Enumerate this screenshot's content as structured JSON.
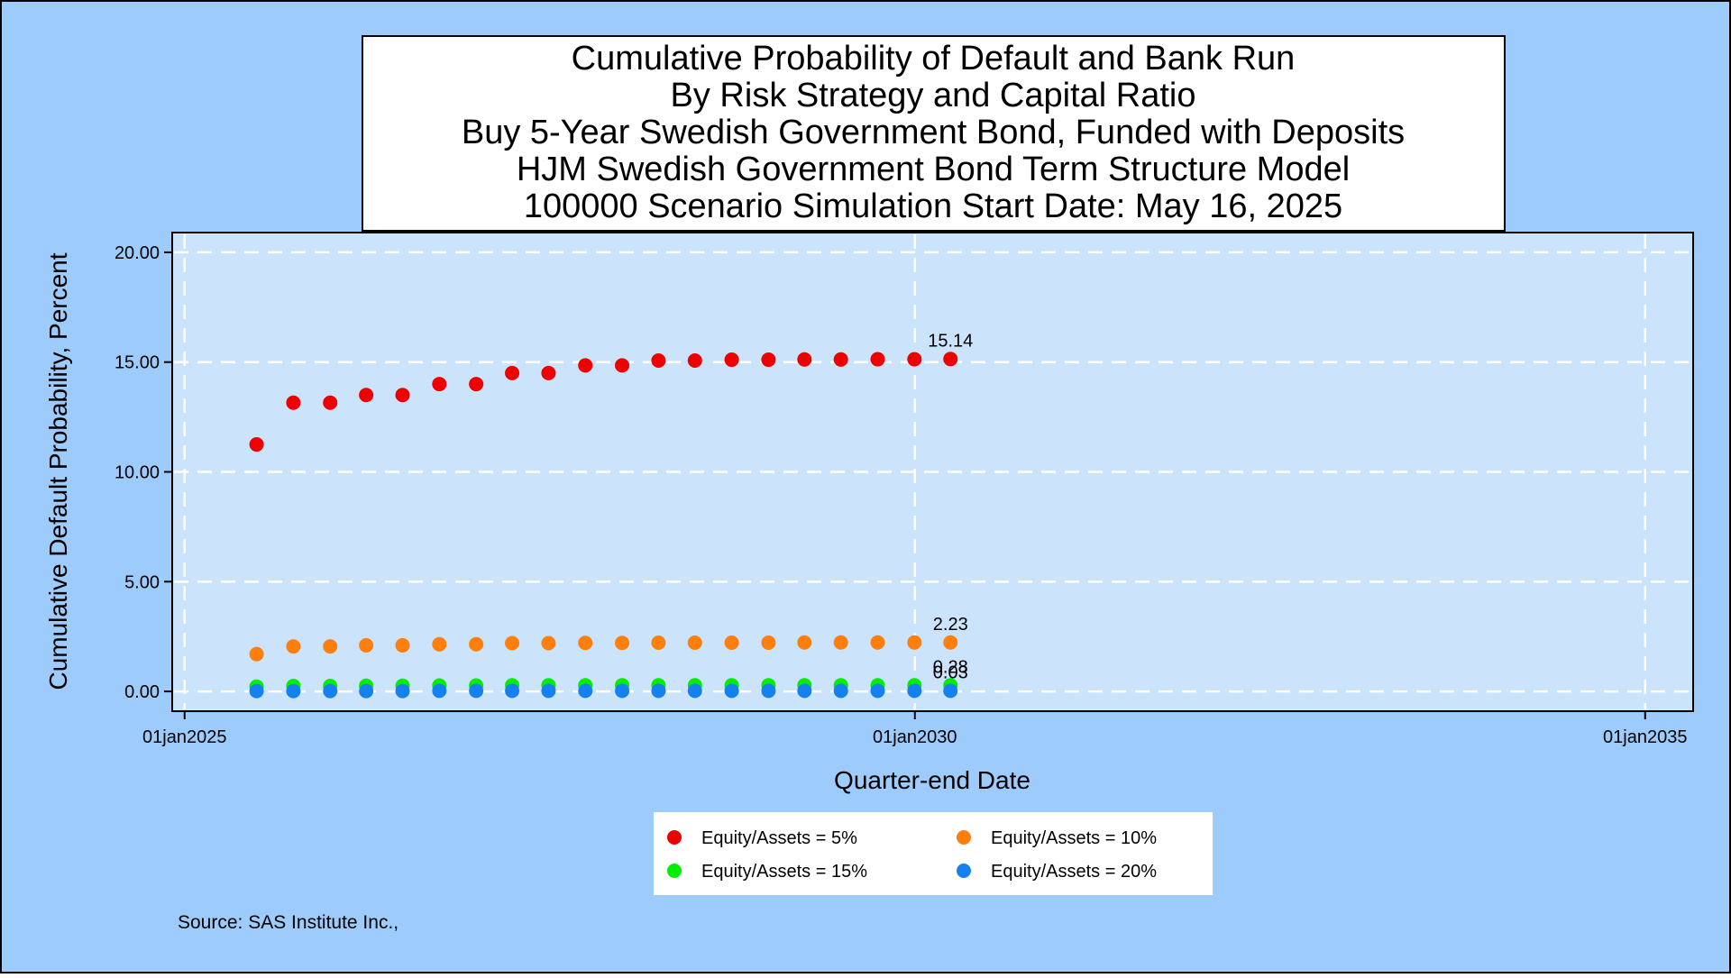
{
  "chart_data": {
    "type": "scatter",
    "title_lines": [
      "Cumulative Probability of Default and Bank Run",
      "By Risk Strategy and Capital Ratio",
      "Buy 5-Year Swedish Government Bond, Funded with Deposits",
      "HJM Swedish Government Bond Term Structure Model",
      "100000 Scenario Simulation Start Date: May 16, 2025"
    ],
    "xlabel": "Quarter-end Date",
    "ylabel": "Cumulative Default Probability, Percent",
    "x_ticks": [
      "01jan2025",
      "01jan2030",
      "01jan2035"
    ],
    "y_ticks": [
      "0.00",
      "5.00",
      "10.00",
      "15.00",
      "20.00"
    ],
    "xlim": [
      "2024-12-01",
      "2035-05-01"
    ],
    "ylim": [
      -0.9,
      20.9
    ],
    "grid": true,
    "legend_position": "bottom",
    "x": [
      "2025-06-30",
      "2025-09-30",
      "2025-12-31",
      "2026-03-31",
      "2026-06-30",
      "2026-09-30",
      "2026-12-31",
      "2027-03-31",
      "2027-06-30",
      "2027-09-30",
      "2027-12-31",
      "2028-03-31",
      "2028-06-30",
      "2028-09-30",
      "2028-12-31",
      "2029-03-31",
      "2029-06-30",
      "2029-09-30",
      "2029-12-31",
      "2030-03-31"
    ],
    "series": [
      {
        "name": "Equity/Assets = 5%",
        "color": "#ee0000",
        "values": [
          11.25,
          13.15,
          13.15,
          13.5,
          13.5,
          14.0,
          14.0,
          14.5,
          14.5,
          14.85,
          14.85,
          15.07,
          15.07,
          15.11,
          15.11,
          15.12,
          15.12,
          15.13,
          15.13,
          15.14
        ],
        "end_label": "15.14"
      },
      {
        "name": "Equity/Assets = 10%",
        "color": "#ff7f0e",
        "values": [
          1.7,
          2.05,
          2.05,
          2.1,
          2.1,
          2.15,
          2.15,
          2.2,
          2.2,
          2.21,
          2.21,
          2.22,
          2.22,
          2.22,
          2.22,
          2.23,
          2.23,
          2.23,
          2.23,
          2.23
        ],
        "end_label": "2.23"
      },
      {
        "name": "Equity/Assets = 15%",
        "color": "#00ee00",
        "values": [
          0.22,
          0.25,
          0.25,
          0.26,
          0.26,
          0.27,
          0.27,
          0.28,
          0.28,
          0.28,
          0.28,
          0.28,
          0.28,
          0.28,
          0.28,
          0.28,
          0.28,
          0.28,
          0.28,
          0.28
        ],
        "end_label": "0.28"
      },
      {
        "name": "Equity/Assets = 20%",
        "color": "#1581ef",
        "values": [
          0.02,
          0.02,
          0.02,
          0.02,
          0.02,
          0.03,
          0.03,
          0.03,
          0.03,
          0.03,
          0.03,
          0.03,
          0.03,
          0.03,
          0.03,
          0.03,
          0.03,
          0.03,
          0.03,
          0.03
        ],
        "end_label": "0.03"
      }
    ],
    "source": "Source: SAS Institute Inc.,"
  },
  "colors": {
    "background": "#9dcbfb",
    "plot_area": "#cbe3fb",
    "grid": "#ffffff"
  }
}
